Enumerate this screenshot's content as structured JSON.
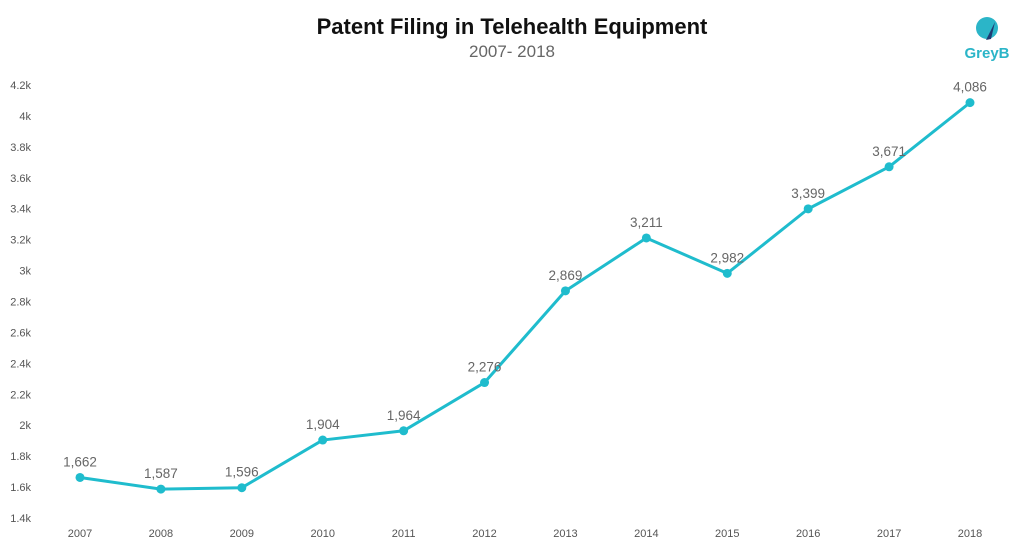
{
  "chart_data": {
    "type": "line",
    "title": "Patent Filing in Telehealth Equipment",
    "subtitle": "2007- 2018",
    "x": [
      "2007",
      "2008",
      "2009",
      "2010",
      "2011",
      "2012",
      "2013",
      "2014",
      "2015",
      "2016",
      "2017",
      "2018"
    ],
    "values": [
      1662,
      1587,
      1596,
      1904,
      1964,
      2276,
      2869,
      3211,
      2982,
      3399,
      3671,
      4086
    ],
    "value_labels": [
      "1,662",
      "1,587",
      "1,596",
      "1,904",
      "1,964",
      "2,276",
      "2,869",
      "3,211",
      "2,982",
      "3,399",
      "3,671",
      "4,086"
    ],
    "ylim": [
      1400,
      4200
    ],
    "yticks": [
      1400,
      1600,
      1800,
      2000,
      2200,
      2400,
      2600,
      2800,
      3000,
      3200,
      3400,
      3600,
      3800,
      4000,
      4200
    ],
    "ytick_labels": [
      "1.4k",
      "1.6k",
      "1.8k",
      "2k",
      "2.2k",
      "2.4k",
      "2.6k",
      "2.8k",
      "3k",
      "3.2k",
      "3.4k",
      "3.6k",
      "3.8k",
      "4k",
      "4.2k"
    ],
    "xlabel": "",
    "ylabel": "",
    "grid": false,
    "legend": "none",
    "line_color": "#1fbccd",
    "label_color": "#666666"
  },
  "logo": {
    "text": "GreyB",
    "color": "#2bb5c8",
    "accent": "#1f3b73"
  }
}
